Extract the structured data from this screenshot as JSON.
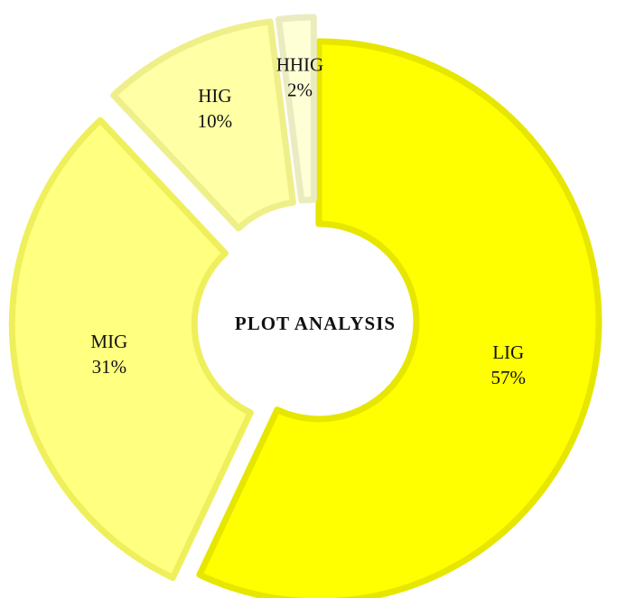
{
  "chart_data": {
    "type": "pie",
    "variant": "donut",
    "title": "PLOT ANALYSIS",
    "categories": [
      "LIG",
      "MIG",
      "HIG",
      "HHIG"
    ],
    "values": [
      57,
      31,
      10,
      2
    ],
    "value_labels": [
      "57%",
      "31%",
      "10%",
      "2%"
    ],
    "legend": "none",
    "series": [
      {
        "values": [
          57,
          31,
          10,
          2
        ],
        "colors": [
          "#FFFF00",
          "#FFFF80",
          "#FFFFA6",
          "#FFFFD6"
        ]
      }
    ]
  }
}
